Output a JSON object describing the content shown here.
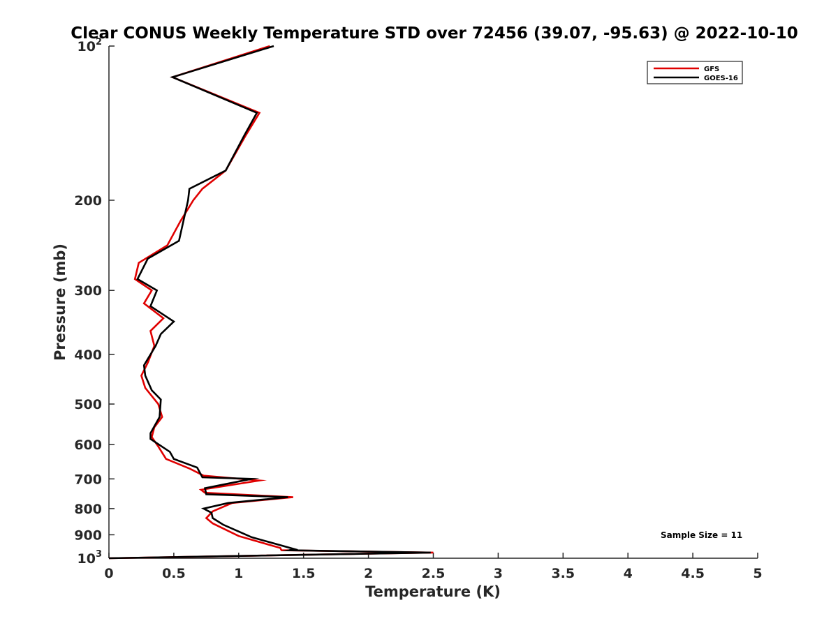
{
  "chart_data": {
    "type": "line",
    "title": "Clear CONUS Weekly Temperature STD over 72456 (39.07, -95.63) @ 2022-10-10",
    "xlabel": "Temperature (K)",
    "ylabel": "Pressure (mb)",
    "xlim": [
      0,
      5
    ],
    "ylim": [
      100,
      1000
    ],
    "yscale": "log",
    "y_reversed": true,
    "grid": false,
    "legend_position": "top-right",
    "x_ticks": [
      {
        "value": 0,
        "label": "0"
      },
      {
        "value": 0.5,
        "label": "0.5"
      },
      {
        "value": 1,
        "label": "1"
      },
      {
        "value": 1.5,
        "label": "1.5"
      },
      {
        "value": 2,
        "label": "2"
      },
      {
        "value": 2.5,
        "label": "2.5"
      },
      {
        "value": 3,
        "label": "3"
      },
      {
        "value": 3.5,
        "label": "3.5"
      },
      {
        "value": 4,
        "label": "4"
      },
      {
        "value": 4.5,
        "label": "4.5"
      },
      {
        "value": 5,
        "label": "5"
      }
    ],
    "y_ticks": [
      {
        "value": 100,
        "base": "10",
        "sup": "2"
      },
      {
        "value": 200,
        "base": "200",
        "sup": ""
      },
      {
        "value": 300,
        "base": "300",
        "sup": ""
      },
      {
        "value": 400,
        "base": "400",
        "sup": ""
      },
      {
        "value": 500,
        "base": "500",
        "sup": ""
      },
      {
        "value": 600,
        "base": "600",
        "sup": ""
      },
      {
        "value": 700,
        "base": "700",
        "sup": ""
      },
      {
        "value": 800,
        "base": "800",
        "sup": ""
      },
      {
        "value": 900,
        "base": "900",
        "sup": ""
      },
      {
        "value": 1000,
        "base": "10",
        "sup": "3"
      }
    ],
    "annotation": "Sample Size = 11",
    "series": [
      {
        "name": "GFS",
        "color": "#e00000",
        "points": [
          [
            1.24,
            100
          ],
          [
            0.49,
            115
          ],
          [
            1.16,
            135
          ],
          [
            1.05,
            150
          ],
          [
            0.9,
            175
          ],
          [
            0.72,
            190
          ],
          [
            0.65,
            200
          ],
          [
            0.55,
            220
          ],
          [
            0.45,
            245
          ],
          [
            0.23,
            265
          ],
          [
            0.2,
            285
          ],
          [
            0.33,
            300
          ],
          [
            0.27,
            318
          ],
          [
            0.42,
            340
          ],
          [
            0.32,
            360
          ],
          [
            0.35,
            385
          ],
          [
            0.3,
            415
          ],
          [
            0.25,
            440
          ],
          [
            0.28,
            465
          ],
          [
            0.38,
            500
          ],
          [
            0.41,
            530
          ],
          [
            0.35,
            555
          ],
          [
            0.33,
            580
          ],
          [
            0.38,
            605
          ],
          [
            0.44,
            640
          ],
          [
            0.62,
            668
          ],
          [
            0.73,
            690
          ],
          [
            1.16,
            705
          ],
          [
            0.71,
            735
          ],
          [
            0.74,
            745
          ],
          [
            1.42,
            760
          ],
          [
            0.95,
            780
          ],
          [
            0.8,
            810
          ],
          [
            0.75,
            835
          ],
          [
            0.8,
            855
          ],
          [
            1.0,
            905
          ],
          [
            1.32,
            955
          ],
          [
            1.33,
            965
          ],
          [
            2.5,
            975
          ],
          [
            0.3,
            997
          ],
          [
            0.0,
            1000
          ]
        ]
      },
      {
        "name": "GOES-16",
        "color": "#000000",
        "points": [
          [
            1.27,
            100
          ],
          [
            0.49,
            115
          ],
          [
            1.14,
            135
          ],
          [
            1.04,
            150
          ],
          [
            0.9,
            175
          ],
          [
            0.62,
            190
          ],
          [
            0.61,
            200
          ],
          [
            0.54,
            240
          ],
          [
            0.3,
            260
          ],
          [
            0.22,
            285
          ],
          [
            0.37,
            300
          ],
          [
            0.32,
            322
          ],
          [
            0.5,
            345
          ],
          [
            0.4,
            365
          ],
          [
            0.36,
            385
          ],
          [
            0.27,
            420
          ],
          [
            0.28,
            440
          ],
          [
            0.33,
            470
          ],
          [
            0.4,
            490
          ],
          [
            0.39,
            530
          ],
          [
            0.32,
            570
          ],
          [
            0.32,
            585
          ],
          [
            0.47,
            620
          ],
          [
            0.5,
            640
          ],
          [
            0.68,
            665
          ],
          [
            0.72,
            695
          ],
          [
            1.1,
            700
          ],
          [
            0.74,
            730
          ],
          [
            0.75,
            750
          ],
          [
            1.38,
            760
          ],
          [
            0.92,
            780
          ],
          [
            0.73,
            800
          ],
          [
            0.79,
            815
          ],
          [
            0.8,
            835
          ],
          [
            0.88,
            860
          ],
          [
            1.1,
            910
          ],
          [
            1.43,
            960
          ],
          [
            1.39,
            965
          ],
          [
            2.48,
            975
          ],
          [
            0.3,
            997
          ],
          [
            0.0,
            1000
          ]
        ]
      }
    ]
  }
}
